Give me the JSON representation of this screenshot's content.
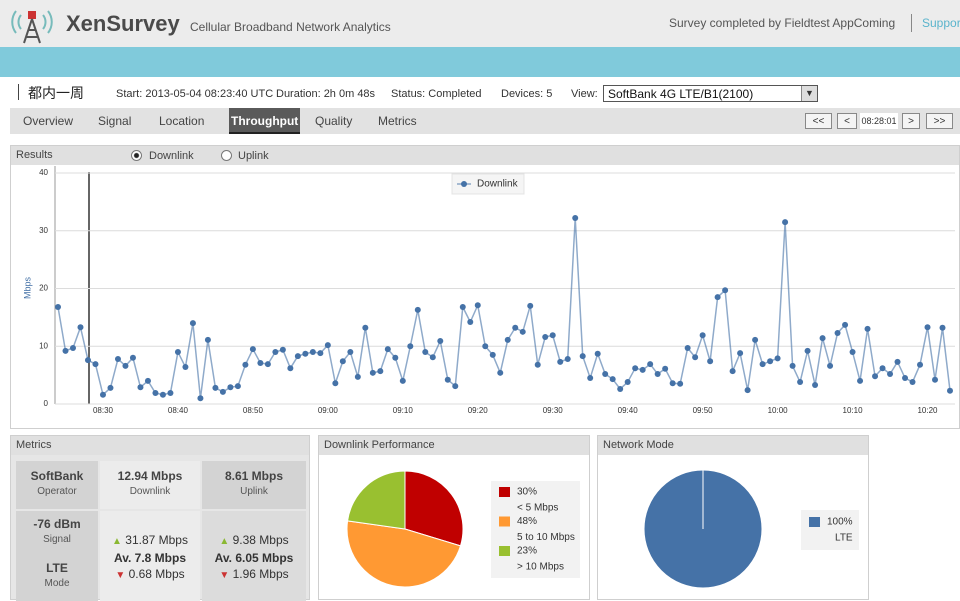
{
  "header": {
    "logo": "XenSurvey",
    "tagline": "Cellular Broadband Network Analytics",
    "status": "Survey completed by Fieldtest AppComing",
    "link": "Support"
  },
  "survey": {
    "name": "都内一周",
    "start": "Start: 2013-05-04 08:23:40 UTC",
    "duration": "Duration: 2h 0m 48s",
    "status": "Status: Completed",
    "devices": "Devices: 5",
    "view_label": "View:",
    "view": "SoftBank 4G LTE/B1(2100)"
  },
  "tabs": [
    "Overview",
    "Signal",
    "Location",
    "Throughput",
    "Quality",
    "Metrics"
  ],
  "active_tab": 3,
  "nav": [
    "<<",
    "<",
    "08:28:01",
    ">",
    ">>"
  ],
  "results": {
    "title": "Results",
    "options": [
      "Downlink",
      "Uplink"
    ],
    "selected": 0
  },
  "metrics": {
    "title": "Metrics",
    "operator": {
      "value": "SoftBank",
      "label": "Operator"
    },
    "downlink": {
      "value": "12.94 Mbps",
      "label": "Downlink"
    },
    "uplink": {
      "value": "8.61 Mbps",
      "label": "Uplink"
    },
    "signal": {
      "value": "-76 dBm",
      "label": "Signal"
    },
    "mode": {
      "value": "LTE",
      "label": "Mode"
    },
    "downlink_stats": {
      "max": "31.87 Mbps",
      "avg": "Av. 7.8 Mbps",
      "min": "0.68 Mbps"
    },
    "uplink_stats": {
      "max": "9.38 Mbps",
      "avg": "Av. 6.05 Mbps",
      "min": "1.96 Mbps"
    }
  },
  "chart_data": [
    {
      "type": "line",
      "categories": [
        null,
        null,
        null,
        null,
        null,
        null,
        "08:30",
        null,
        null,
        null,
        null,
        null,
        null,
        null,
        null,
        null,
        "08:40",
        null,
        null,
        null,
        null,
        null,
        null,
        null,
        null,
        null,
        "08:50",
        null,
        null,
        null,
        null,
        null,
        null,
        null,
        null,
        null,
        "09:00",
        null,
        null,
        null,
        null,
        null,
        null,
        null,
        null,
        null,
        "09:10",
        null,
        null,
        null,
        null,
        null,
        null,
        null,
        null,
        null,
        "09:20",
        null,
        null,
        null,
        null,
        null,
        null,
        null,
        null,
        null,
        "09:30",
        null,
        null,
        null,
        null,
        null,
        null,
        null,
        null,
        null,
        "09:40",
        null,
        null,
        null,
        null,
        null,
        null,
        null,
        null,
        null,
        "09:50",
        null,
        null,
        null,
        null,
        null,
        null,
        null,
        null,
        null,
        "10:00",
        null,
        null,
        null,
        null,
        null,
        null,
        null,
        null,
        null,
        "10:10",
        null,
        null,
        null,
        null,
        null,
        null,
        null,
        null,
        null,
        "10:20",
        null,
        null,
        null
      ],
      "series": [
        {
          "name": "Downlink",
          "color": "#4572a7",
          "values": [
            16.8,
            9.2,
            9.7,
            13.3,
            7.6,
            6.9,
            1.6,
            2.8,
            7.8,
            6.6,
            8.0,
            2.9,
            4.0,
            1.9,
            1.6,
            1.9,
            9.0,
            6.4,
            14.0,
            1.0,
            11.1,
            2.8,
            2.1,
            2.9,
            3.1,
            6.8,
            9.5,
            7.1,
            6.9,
            9.0,
            9.4,
            6.2,
            8.3,
            8.7,
            9.0,
            8.8,
            10.2,
            3.6,
            7.4,
            9.0,
            4.7,
            13.2,
            5.4,
            5.7,
            9.5,
            8.0,
            4.0,
            10.0,
            16.3,
            9.0,
            8.1,
            10.9,
            4.2,
            3.1,
            16.8,
            14.2,
            17.1,
            10.0,
            8.5,
            5.4,
            11.1,
            13.2,
            12.5,
            17.0,
            6.8,
            11.6,
            11.9,
            7.3,
            7.8,
            32.2,
            8.3,
            4.5,
            8.7,
            5.2,
            4.3,
            2.6,
            3.8,
            6.2,
            5.9,
            6.9,
            5.2,
            6.1,
            3.6,
            3.5,
            9.7,
            8.1,
            11.9,
            7.4,
            18.5,
            19.7,
            5.7,
            8.8,
            2.4,
            11.1,
            6.9,
            7.4,
            7.9,
            31.5,
            6.6,
            3.8,
            9.2,
            3.3,
            11.4,
            6.6,
            12.3,
            13.7,
            9.0,
            4.0,
            13.0,
            4.8,
            6.2,
            5.2,
            7.3,
            4.5,
            3.8,
            6.8,
            13.3,
            4.2,
            13.2,
            2.3
          ]
        }
      ],
      "ylabel": "Mbps",
      "ylim": [
        0,
        40
      ],
      "yticks": [
        0,
        10,
        20,
        30,
        40
      ],
      "grid": true,
      "legend": "top"
    },
    {
      "type": "pie",
      "title": "Downlink Performance",
      "categories": [
        "< 5 Mbps",
        "5 to 10 Mbps",
        "> 10 Mbps"
      ],
      "values": [
        30,
        48,
        23
      ],
      "value_labels": [
        "30%",
        "48%",
        "23%"
      ],
      "colors": [
        "#c00000",
        "#ff9933",
        "#99c030"
      ]
    },
    {
      "type": "pie",
      "title": "Network Mode",
      "categories": [
        "LTE"
      ],
      "values": [
        100
      ],
      "value_labels": [
        "100%"
      ],
      "colors": [
        "#4572a7"
      ]
    }
  ]
}
